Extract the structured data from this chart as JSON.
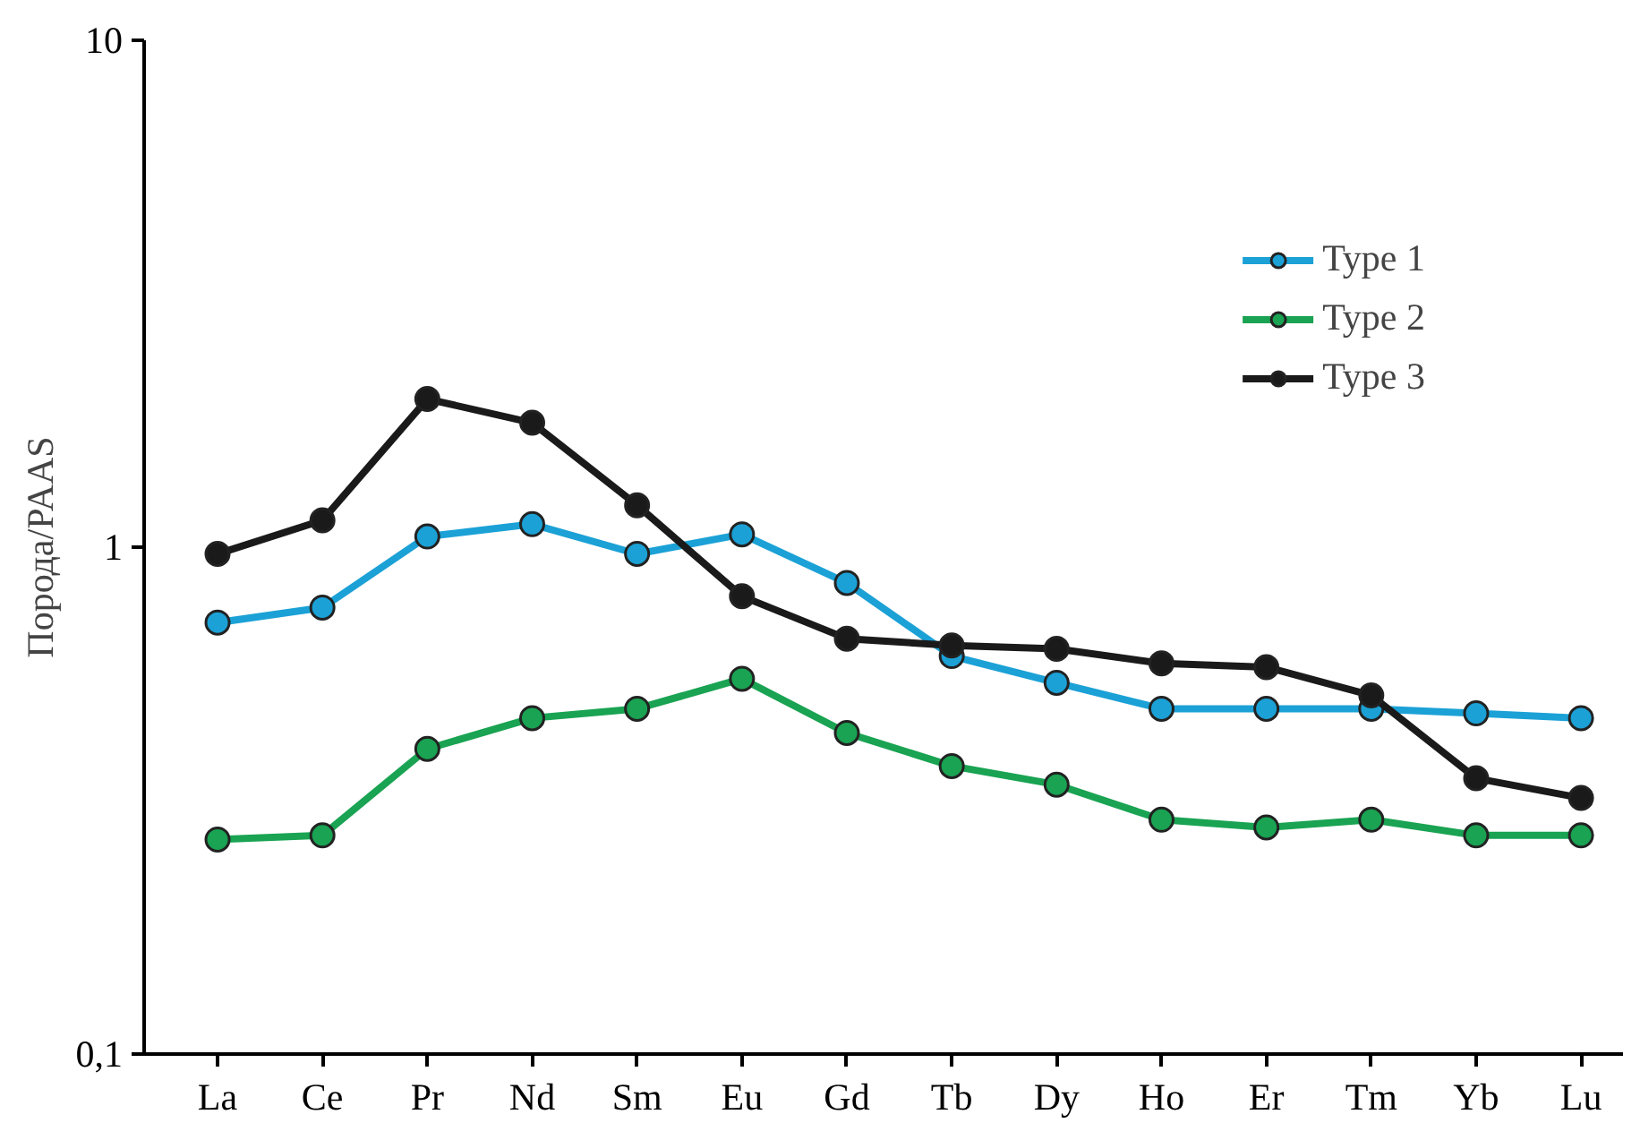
{
  "chart_data": {
    "type": "line",
    "ylabel": "Порода/PAAS",
    "log": true,
    "grid": false,
    "legend": "top right",
    "marker": "circle",
    "line_style": "solid",
    "categories": [
      "La",
      "Ce",
      "Pr",
      "Nd",
      "Sm",
      "Eu",
      "Gd",
      "Tb",
      "Dy",
      "Ho",
      "Er",
      "Tm",
      "Yb",
      "Lu"
    ],
    "ylim": [
      0.1,
      10
    ],
    "yticks": [
      {
        "value": 0.1,
        "label": "0,1"
      },
      1,
      10
    ],
    "series": [
      {
        "name": "Type 1",
        "color": "#1ba1d6",
        "values": [
          0.71,
          0.76,
          1.05,
          1.11,
          0.97,
          1.06,
          0.85,
          0.61,
          0.54,
          0.48,
          0.48,
          0.48,
          0.47,
          0.46
        ]
      },
      {
        "name": "Type 2",
        "color": "#19a352",
        "values": [
          0.265,
          0.27,
          0.4,
          0.46,
          0.48,
          0.55,
          0.43,
          0.37,
          0.34,
          0.29,
          0.28,
          0.29,
          0.27,
          0.27
        ]
      },
      {
        "name": "Type 3",
        "color": "#1a1a1a",
        "values": [
          0.97,
          1.13,
          1.96,
          1.76,
          1.21,
          0.8,
          0.66,
          0.64,
          0.63,
          0.59,
          0.58,
          0.51,
          0.35,
          0.32
        ]
      }
    ]
  }
}
